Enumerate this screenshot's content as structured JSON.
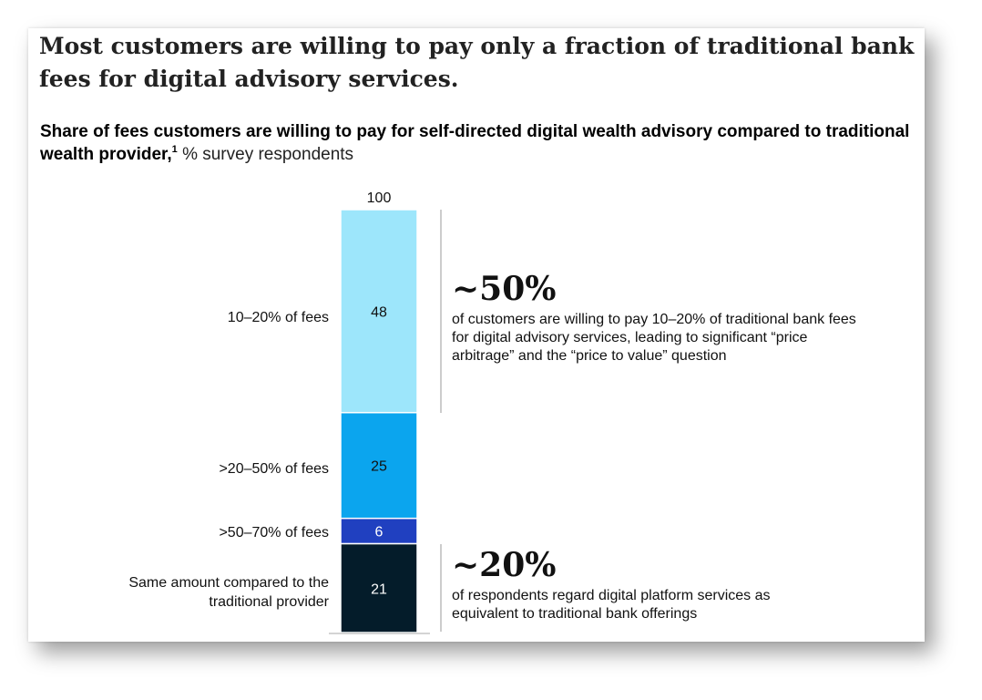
{
  "headline": "Most customers are willing to pay only a fraction of traditional bank fees for digital advisory services.",
  "subtitle": {
    "bold": "Share of fees customers are willing to pay for self-directed digital wealth advisory compared to traditional wealth provider,",
    "footnote": "1",
    "unit": "% survey respondents"
  },
  "chart_data": {
    "type": "bar",
    "stacked": true,
    "total_label": "100",
    "categories": [
      "10–20% of fees",
      ">20–50% of fees",
      ">50–70% of fees",
      "Same amount compared to the traditional provider"
    ],
    "values": [
      48,
      25,
      6,
      21
    ],
    "value_labels": [
      "48",
      "25",
      "6",
      "21"
    ],
    "colors": [
      "#9de6fb",
      "#0ba5ee",
      "#2040c0",
      "#041c2a"
    ],
    "label_colors": [
      "#111111",
      "#111111",
      "#ffffff",
      "#ffffff"
    ],
    "ylim": [
      0,
      100
    ]
  },
  "callouts": [
    {
      "value": "~50%",
      "text": "of customers are willing to pay 10–20% of traditional bank fees for digital advisory services, leading to significant “price arbitrage” and the “price to value” question"
    },
    {
      "value": "~20%",
      "text": "of respondents regard digital platform services as equivalent to traditional bank offerings"
    }
  ]
}
